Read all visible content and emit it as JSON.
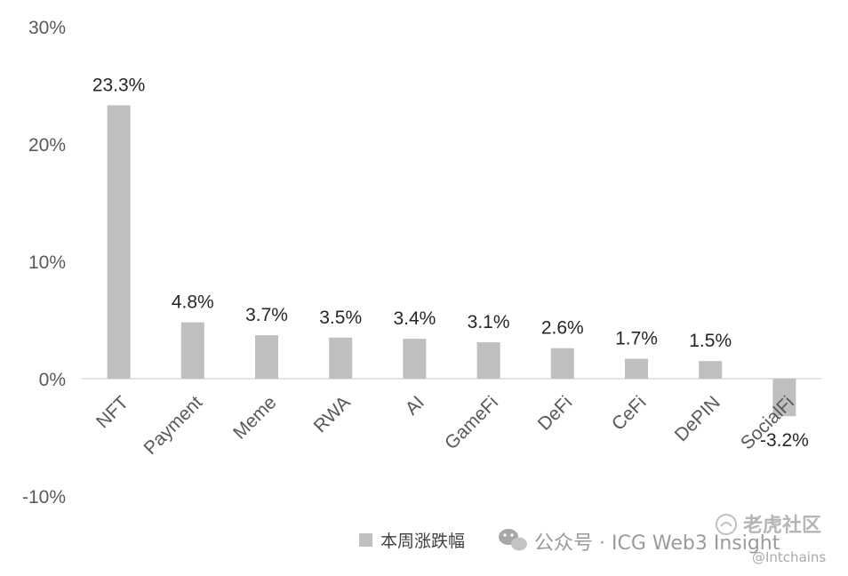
{
  "chart_data": {
    "type": "bar",
    "categories": [
      "NFT",
      "Payment",
      "Meme",
      "RWA",
      "AI",
      "GameFi",
      "DeFi",
      "CeFi",
      "DePIN",
      "SocialFi"
    ],
    "series": [
      {
        "name": "本周涨跌幅",
        "values": [
          23.3,
          4.8,
          3.7,
          3.5,
          3.4,
          3.1,
          2.6,
          1.7,
          1.5,
          -3.2
        ],
        "labels": [
          "23.3%",
          "4.8%",
          "3.7%",
          "3.5%",
          "3.4%",
          "3.1%",
          "2.6%",
          "1.7%",
          "1.5%",
          "-3.2%"
        ]
      }
    ],
    "yticks": [
      30,
      20,
      10,
      0,
      -10
    ],
    "ytick_labels": [
      "30%",
      "20%",
      "10%",
      "0%",
      "-10%"
    ],
    "ylim": [
      -10,
      30
    ],
    "title": "",
    "xlabel": "",
    "ylabel": "",
    "grid": false,
    "legend_position": "bottom",
    "bar_color": "#bfbfbf"
  },
  "watermark": {
    "source": "公众号 · ICG Web3 Insight",
    "logo": "老虎社区",
    "handle": "@Intchains"
  }
}
